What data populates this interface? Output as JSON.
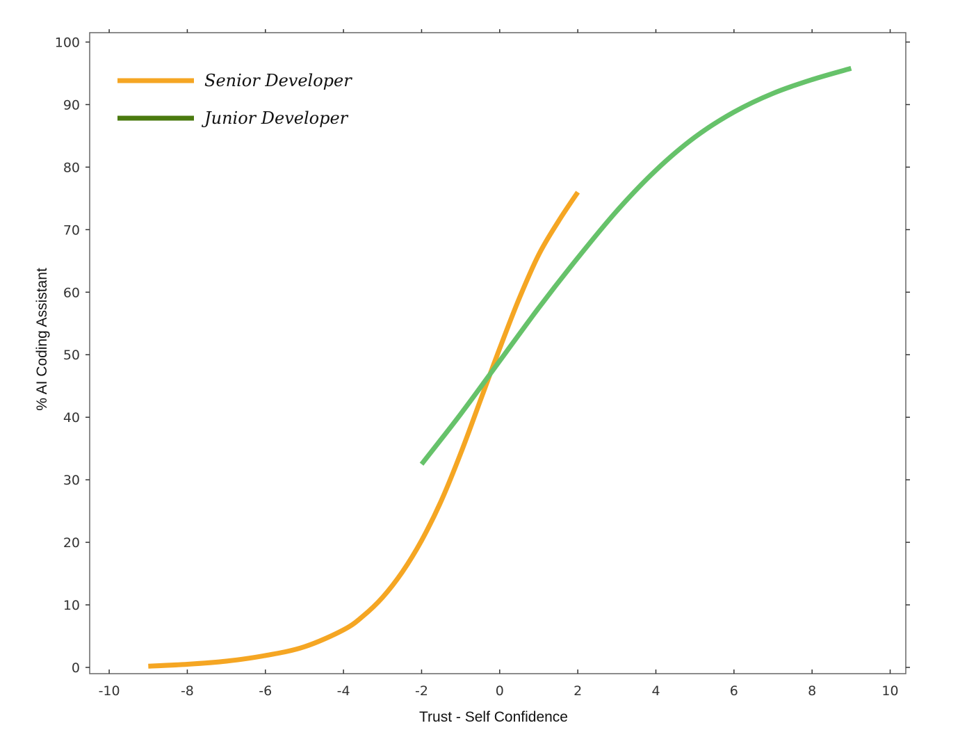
{
  "chart_data": {
    "type": "line",
    "title": "",
    "xlabel": "Trust - Self Confidence",
    "ylabel": "% AI Coding Assistant",
    "xlim": [
      -10.5,
      10.4
    ],
    "ylim": [
      -1,
      101.5
    ],
    "xticks": [
      -10,
      -8,
      -6,
      -4,
      -2,
      0,
      2,
      4,
      6,
      8,
      10
    ],
    "yticks": [
      0,
      10,
      20,
      30,
      40,
      50,
      60,
      70,
      80,
      90,
      100
    ],
    "grid": false,
    "legend_position": "top-left",
    "series": [
      {
        "name": "Senior Developer",
        "color": "#f5a623",
        "legend_color": "#f5a623",
        "x": [
          -9,
          -8,
          -7,
          -6,
          -5,
          -4,
          -3.5,
          -3,
          -2.5,
          -2,
          -1.5,
          -1,
          -0.5,
          0,
          0.5,
          1,
          1.5,
          2
        ],
        "y": [
          0.2,
          0.5,
          1.0,
          1.9,
          3.3,
          6.0,
          8.2,
          11.2,
          15.2,
          20.3,
          26.6,
          34.2,
          42.6,
          51.0,
          59.0,
          66.0,
          71.3,
          76.0
        ]
      },
      {
        "name": "Junior Developer",
        "color": "#66c26a",
        "legend_color": "#4a7a0f",
        "x": [
          -2,
          -1,
          0,
          1,
          2,
          3,
          4,
          5,
          6,
          7,
          8,
          9
        ],
        "y": [
          32.5,
          40.5,
          49.0,
          57.5,
          65.5,
          73.0,
          79.5,
          84.8,
          88.8,
          91.8,
          94.0,
          95.8
        ]
      }
    ]
  }
}
